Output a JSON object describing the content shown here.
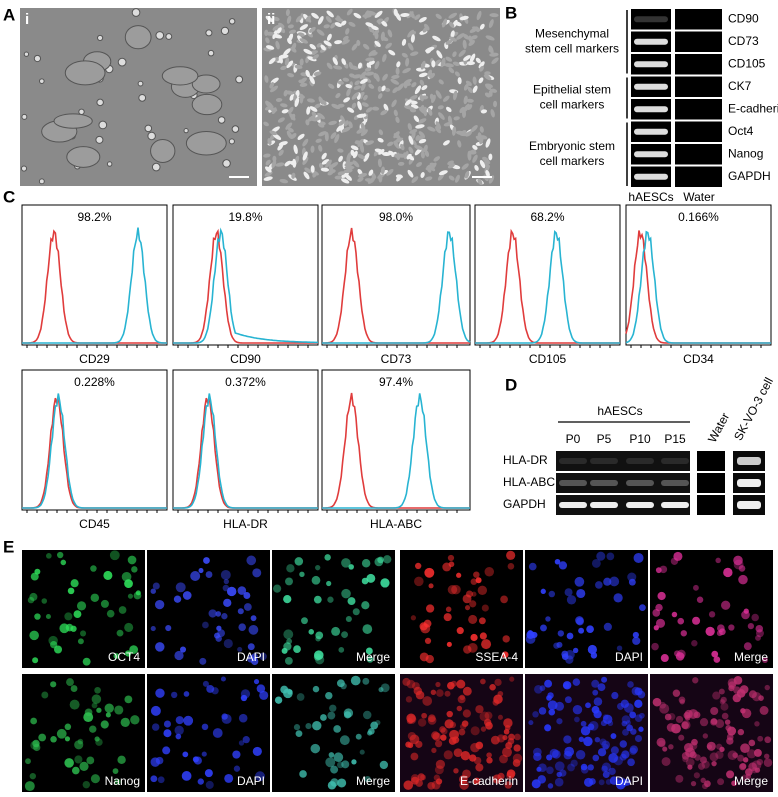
{
  "panel_labels": [
    "A",
    "B",
    "C",
    "D",
    "E"
  ],
  "panel_a": {
    "images": [
      "i",
      "ii"
    ]
  },
  "panel_b": {
    "groups": [
      {
        "label": [
          "Mesenchymal",
          "stem cell markers"
        ],
        "markers": [
          "CD90",
          "CD73",
          "CD105"
        ]
      },
      {
        "label": [
          "Epithelial stem",
          "cell markers"
        ],
        "markers": [
          "CK7",
          "E-cadherin"
        ]
      },
      {
        "label": [
          "Embryonic stem",
          "cell markers"
        ],
        "markers": [
          "Oct4",
          "Nanog",
          "GAPDH"
        ]
      }
    ],
    "columns": [
      "hAESCs",
      "Water"
    ]
  },
  "panel_c": {
    "histograms": [
      {
        "marker": "CD29",
        "percent": "98.2%"
      },
      {
        "marker": "CD90",
        "percent": "19.8%"
      },
      {
        "marker": "CD73",
        "percent": "98.0%"
      },
      {
        "marker": "CD105",
        "percent": "68.2%"
      },
      {
        "marker": "CD34",
        "percent": "0.166%"
      },
      {
        "marker": "CD45",
        "percent": "0.228%"
      },
      {
        "marker": "HLA-DR",
        "percent": "0.372%"
      },
      {
        "marker": "HLA-ABC",
        "percent": "97.4%"
      }
    ]
  },
  "panel_d": {
    "group": "hAESCs",
    "lanes": [
      "P0",
      "P5",
      "P10",
      "P15"
    ],
    "extra_lanes": [
      "Water",
      "SK-VO-3 cell"
    ],
    "rows": [
      "HLA-DR",
      "HLA-ABC",
      "GAPDH"
    ]
  },
  "panel_e": {
    "images": [
      [
        "OCT4",
        "DAPI",
        "Merge",
        "SSEA-4",
        "DAPI",
        "Merge"
      ],
      [
        "Nanog",
        "DAPI",
        "Merge",
        "E-cadherin",
        "DAPI",
        "Merge"
      ]
    ]
  }
}
